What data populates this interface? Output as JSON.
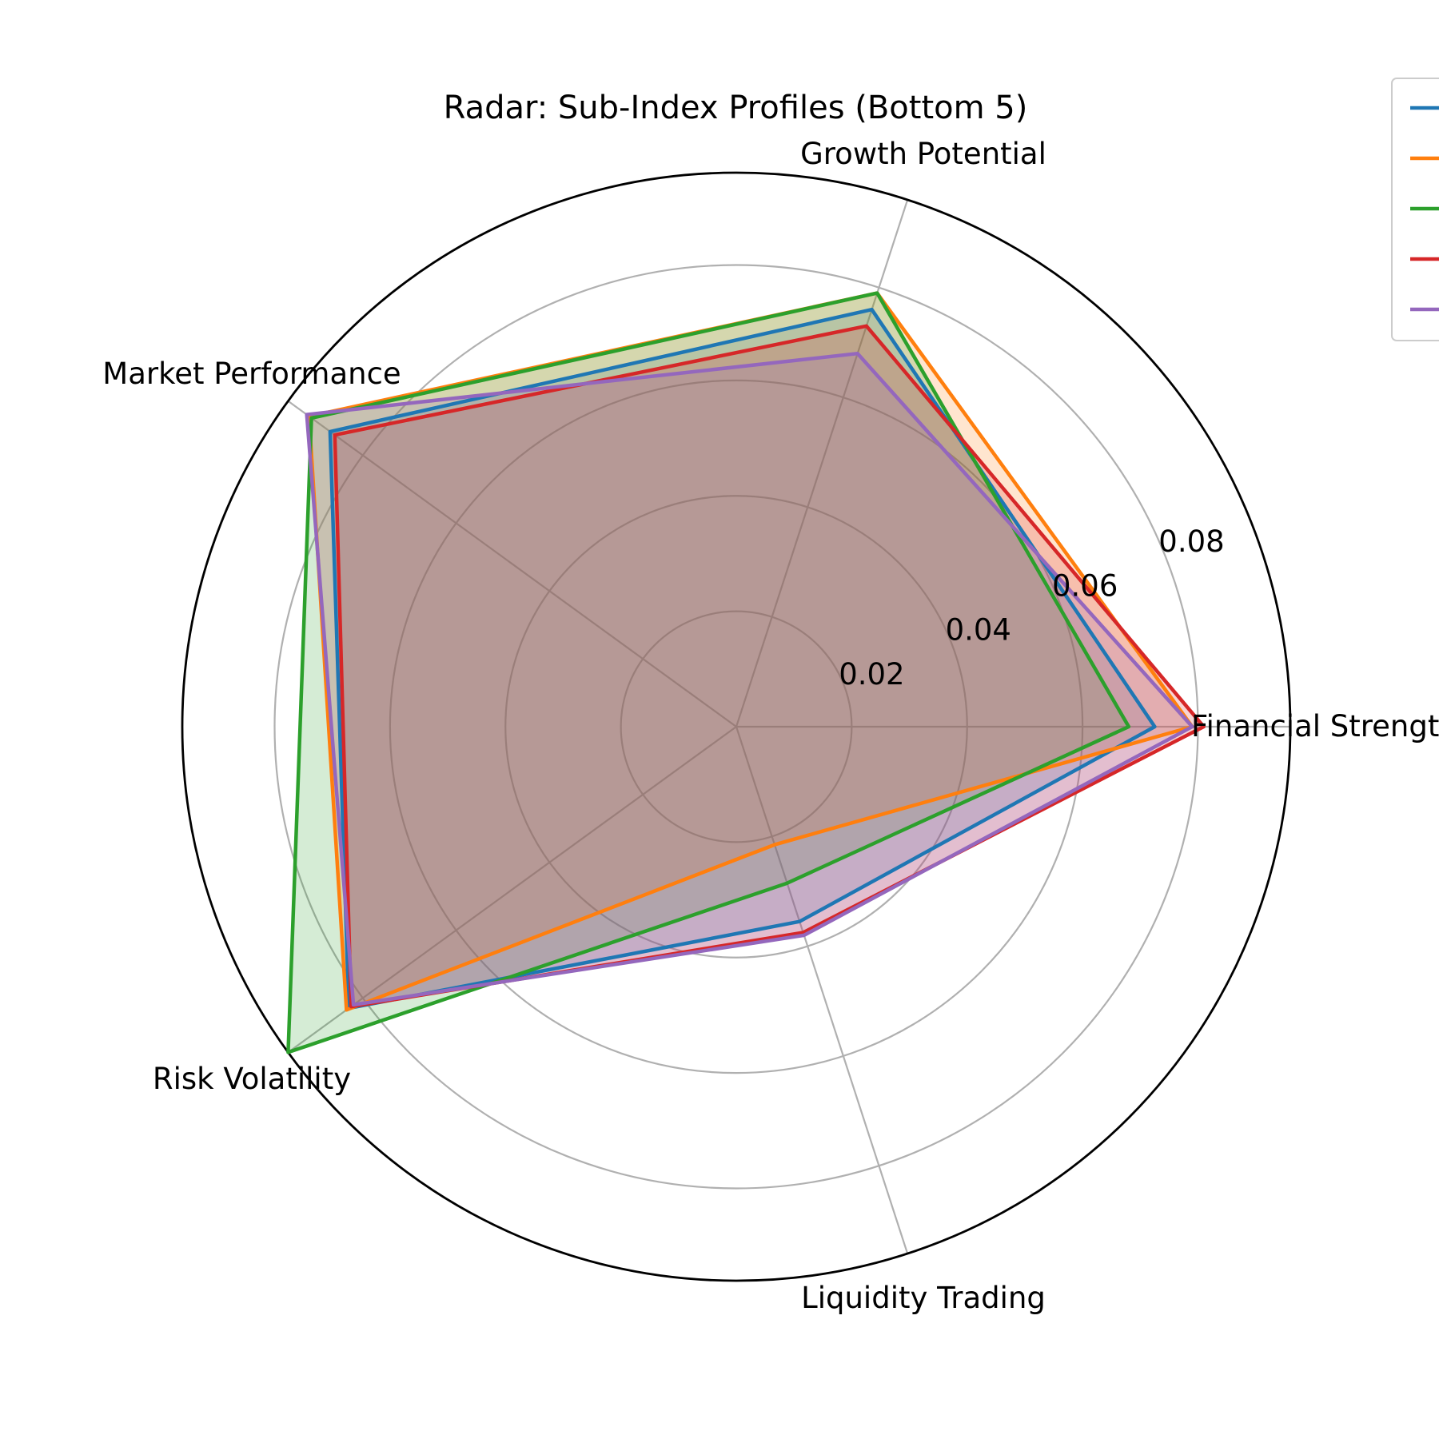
{
  "chart_data": {
    "type": "radar",
    "title": "Radar: Sub-Index Profiles (Bottom 5)",
    "axes": [
      "Financial Strength",
      "Growth Potential",
      "Market Performance",
      "Risk Volatility",
      "Liquidity Trading"
    ],
    "rlim": [
      0,
      0.096
    ],
    "r_ticks": [
      0.02,
      0.04,
      0.06,
      0.08
    ],
    "r_tick_labels": [
      "0.02",
      "0.04",
      "0.06",
      "0.08"
    ],
    "grid": true,
    "legend_position": "top-right",
    "series": [
      {
        "color": "#1f77b4",
        "values": [
          0.0725,
          0.076,
          0.087,
          0.083,
          0.0355
        ]
      },
      {
        "color": "#ff7f0e",
        "values": [
          0.079,
          0.079,
          0.0915,
          0.0835,
          0.0215
        ]
      },
      {
        "color": "#2ca02c",
        "values": [
          0.068,
          0.079,
          0.091,
          0.096,
          0.0285
        ]
      },
      {
        "color": "#d62728",
        "values": [
          0.081,
          0.073,
          0.086,
          0.0825,
          0.0375
        ]
      },
      {
        "color": "#9467bd",
        "values": [
          0.079,
          0.068,
          0.092,
          0.082,
          0.038
        ]
      }
    ]
  }
}
